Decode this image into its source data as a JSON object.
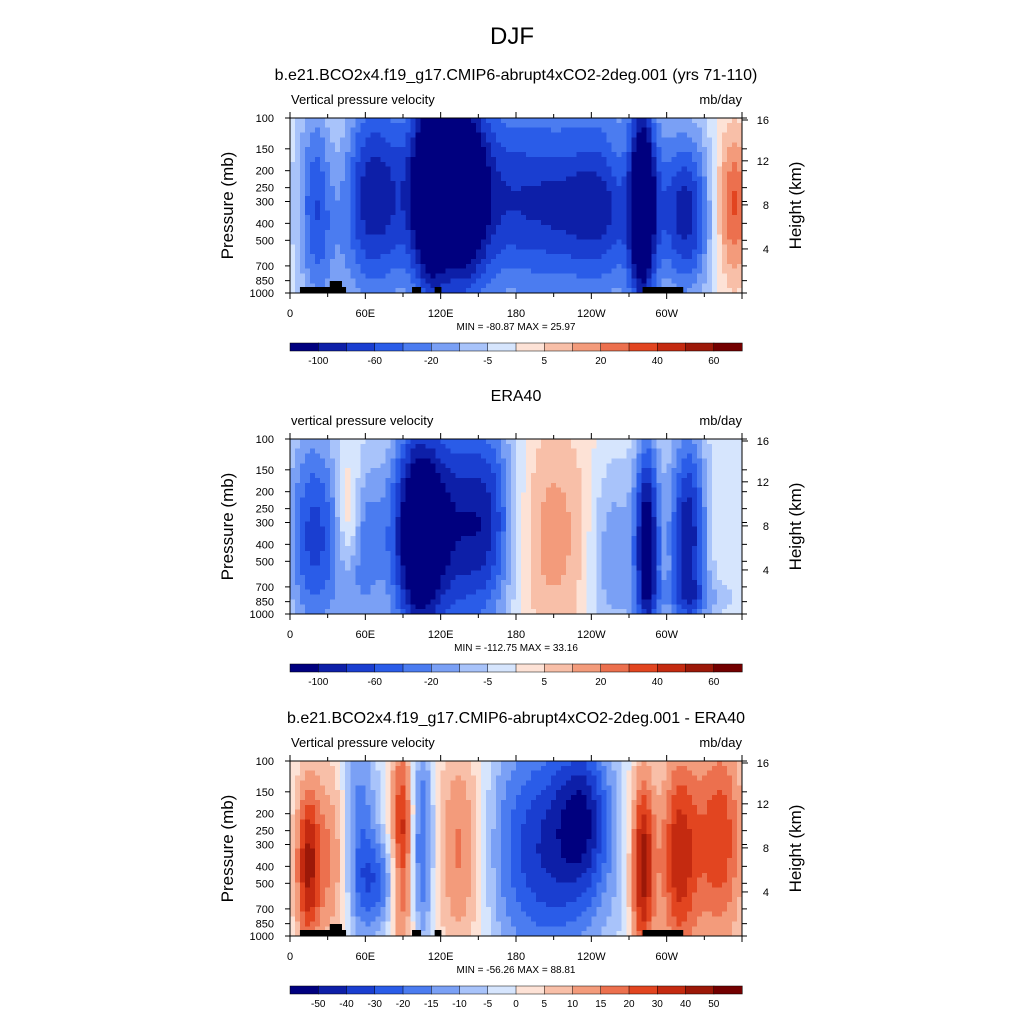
{
  "figure": {
    "title": "DJF"
  },
  "colorbars": {
    "full": {
      "colors": [
        "#00007f",
        "#0d1fa8",
        "#1a3ed0",
        "#2a5ce8",
        "#4b7cf0",
        "#7aa0f5",
        "#a8c3fa",
        "#d6e5fd",
        "#fde2d6",
        "#f8bfa8",
        "#f39b7b",
        "#ec704e",
        "#e24520",
        "#c42a10",
        "#9c1808",
        "#730000"
      ],
      "labels": [
        "-100",
        "-60",
        "-20",
        "-5",
        "5",
        "20",
        "40",
        "60"
      ]
    },
    "diff": {
      "colors": [
        "#00007f",
        "#0d1fa8",
        "#1a3ed0",
        "#2a5ce8",
        "#4b7cf0",
        "#7aa0f5",
        "#a8c3fa",
        "#d6e5fd",
        "#fde2d6",
        "#f8bfa8",
        "#f39b7b",
        "#ec704e",
        "#e24520",
        "#c42a10",
        "#9c1808",
        "#730000"
      ],
      "labels": [
        "-50",
        "-40",
        "-30",
        "-20",
        "-15",
        "-10",
        "-5",
        "0",
        "5",
        "10",
        "15",
        "20",
        "30",
        "40",
        "50"
      ]
    }
  },
  "axes": {
    "pressure_label": "Pressure (mb)",
    "height_label": "Height (km)",
    "pressure_ticks": [
      "100",
      "150",
      "200",
      "250",
      "300",
      "400",
      "500",
      "700",
      "850",
      "1000"
    ],
    "height_ticks": [
      "16",
      "12",
      "8",
      "4"
    ],
    "lon_ticks": [
      "0",
      "60E",
      "120E",
      "180",
      "120W",
      "60W"
    ]
  },
  "chart_data": [
    {
      "type": "heatmap",
      "title": "b.e21.BCO2x4.f19_g17.CMIP6-abrupt4xCO2-2deg.001 (yrs 71-110)",
      "left_label": "Vertical pressure velocity",
      "right_label": "mb/day",
      "stats": "MIN = -80.87  MAX =  25.97",
      "min": -80.87,
      "max": 25.97,
      "colorbar": "full",
      "x_range": [
        0,
        360
      ],
      "y_range_mb": [
        100,
        1000
      ],
      "orography": true
    },
    {
      "type": "heatmap",
      "title": "ERA40",
      "left_label": "vertical pressure velocity",
      "right_label": "mb/day",
      "stats": "MIN = -112.75  MAX =  33.16",
      "min": -112.75,
      "max": 33.16,
      "colorbar": "full",
      "x_range": [
        0,
        360
      ],
      "y_range_mb": [
        100,
        1000
      ],
      "orography": false
    },
    {
      "type": "heatmap",
      "title": "b.e21.BCO2x4.f19_g17.CMIP6-abrupt4xCO2-2deg.001 - ERA40",
      "left_label": "Vertical pressure velocity",
      "right_label": "mb/day",
      "stats": "MIN = -56.26  MAX =  88.81",
      "min": -56.26,
      "max": 88.81,
      "colorbar": "diff",
      "x_range": [
        0,
        360
      ],
      "y_range_mb": [
        100,
        1000
      ],
      "orography": true
    }
  ]
}
